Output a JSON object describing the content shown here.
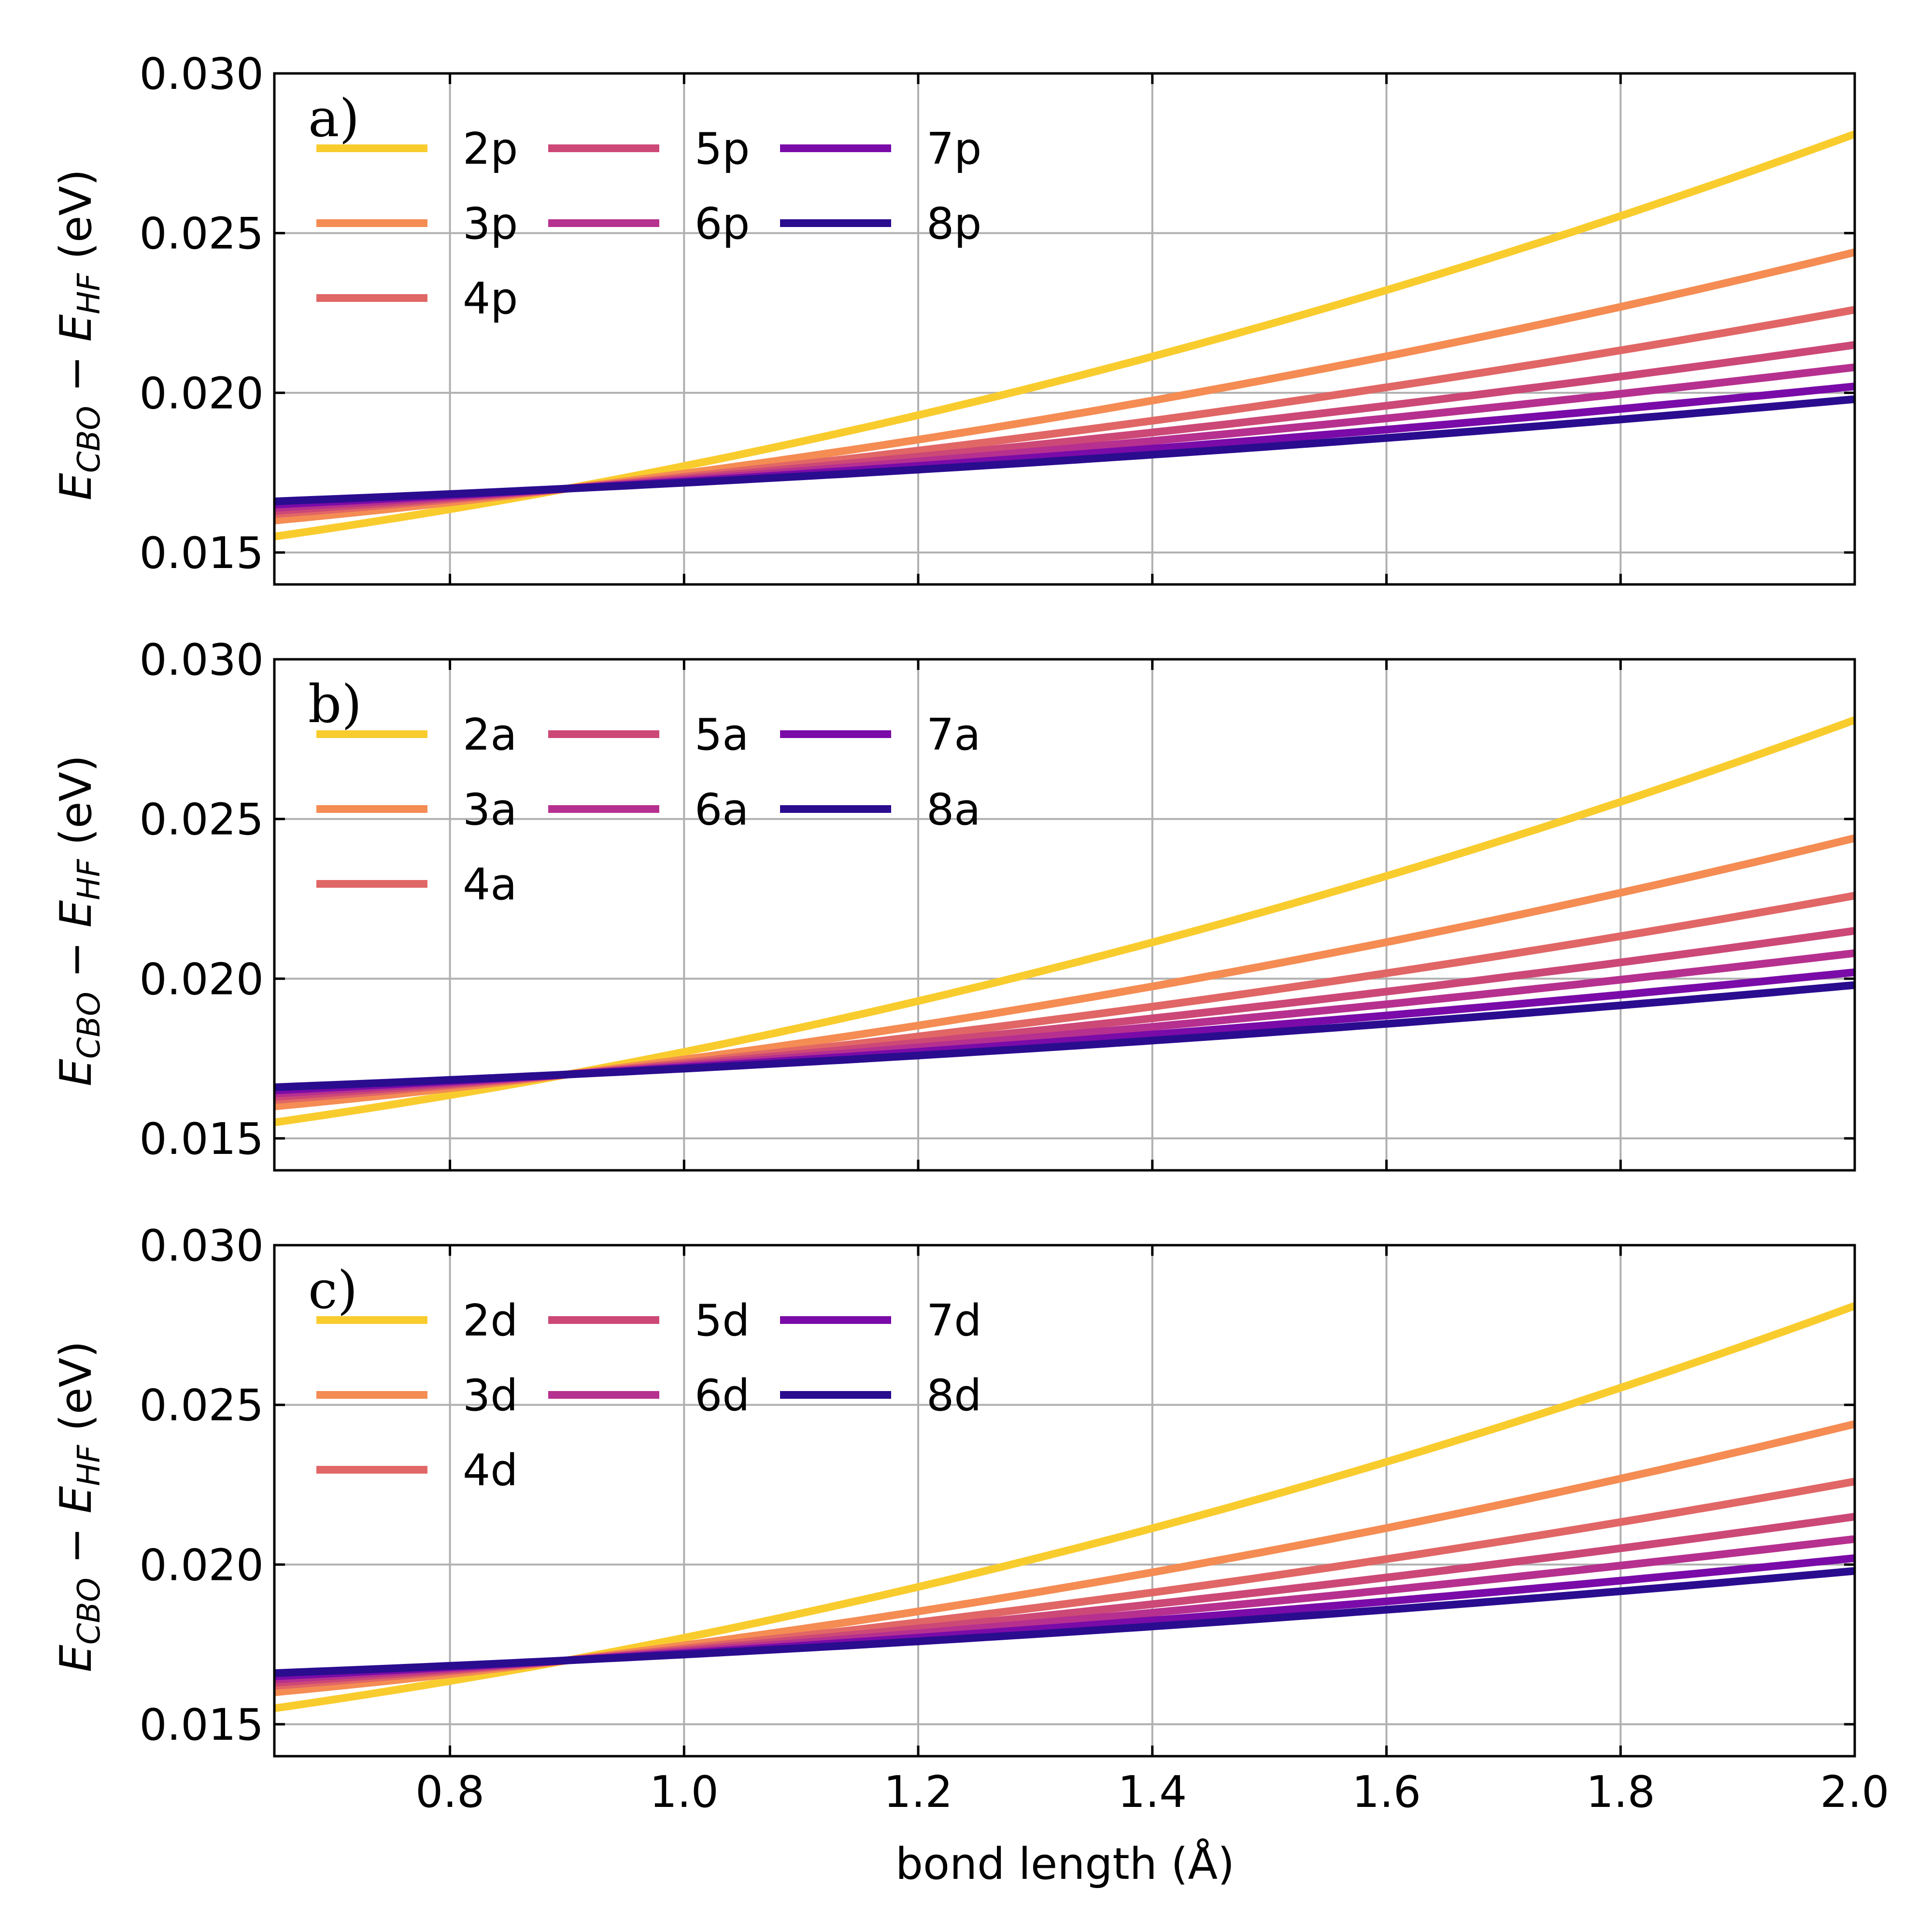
{
  "chart_data": {
    "type": "line",
    "xlabel": "bond length (Å)",
    "xlim": [
      0.65,
      2.0
    ],
    "x_ticks": [
      0.8,
      1.0,
      1.2,
      1.4,
      1.6,
      1.8,
      2.0
    ],
    "x_tick_labels": [
      "0.8",
      "1.0",
      "1.2",
      "1.4",
      "1.6",
      "1.8",
      "2.0"
    ],
    "ylabel": {
      "main": "E",
      "sub1": "CBO",
      "mid": " − E",
      "sub2": "HF",
      "unit": " (eV)"
    },
    "ylim": [
      0.014,
      0.03
    ],
    "y_ticks": [
      0.015,
      0.02,
      0.025,
      0.03
    ],
    "y_tick_labels": [
      "0.015",
      "0.020",
      "0.025",
      "0.030"
    ],
    "grid": true,
    "legend_location": "top-left",
    "colors": [
      "#f9cc2e",
      "#f48c53",
      "#e16666",
      "#cc4877",
      "#b6308f",
      "#7a0ba8",
      "#2a0c8f"
    ],
    "x": [
      0.65,
      0.9,
      2.0
    ],
    "curve_shape": "quadratic through the three x points; all series cross at x = 0.9",
    "panels": [
      {
        "label": "a)",
        "series": [
          {
            "name": "2p",
            "values": [
              0.0155,
              0.017,
              0.0281
            ]
          },
          {
            "name": "3p",
            "values": [
              0.016,
              0.017,
              0.0244
            ]
          },
          {
            "name": "4p",
            "values": [
              0.0162,
              0.017,
              0.0226
            ]
          },
          {
            "name": "5p",
            "values": [
              0.0163,
              0.017,
              0.0215
            ]
          },
          {
            "name": "6p",
            "values": [
              0.0164,
              0.017,
              0.0208
            ]
          },
          {
            "name": "7p",
            "values": [
              0.0165,
              0.017,
              0.0202
            ]
          },
          {
            "name": "8p",
            "values": [
              0.0166,
              0.017,
              0.0198
            ]
          }
        ]
      },
      {
        "label": "b)",
        "series": [
          {
            "name": "2a",
            "values": [
              0.0155,
              0.017,
              0.0281
            ]
          },
          {
            "name": "3a",
            "values": [
              0.016,
              0.017,
              0.0244
            ]
          },
          {
            "name": "4a",
            "values": [
              0.0162,
              0.017,
              0.0226
            ]
          },
          {
            "name": "5a",
            "values": [
              0.0163,
              0.017,
              0.0215
            ]
          },
          {
            "name": "6a",
            "values": [
              0.0164,
              0.017,
              0.0208
            ]
          },
          {
            "name": "7a",
            "values": [
              0.0165,
              0.017,
              0.0202
            ]
          },
          {
            "name": "8a",
            "values": [
              0.0166,
              0.017,
              0.0198
            ]
          }
        ]
      },
      {
        "label": "c)",
        "series": [
          {
            "name": "2d",
            "values": [
              0.0155,
              0.017,
              0.0281
            ]
          },
          {
            "name": "3d",
            "values": [
              0.016,
              0.017,
              0.0244
            ]
          },
          {
            "name": "4d",
            "values": [
              0.0162,
              0.017,
              0.0226
            ]
          },
          {
            "name": "5d",
            "values": [
              0.0163,
              0.017,
              0.0215
            ]
          },
          {
            "name": "6d",
            "values": [
              0.0164,
              0.017,
              0.0208
            ]
          },
          {
            "name": "7d",
            "values": [
              0.0165,
              0.017,
              0.0202
            ]
          },
          {
            "name": "8d",
            "values": [
              0.0166,
              0.017,
              0.0198
            ]
          }
        ]
      }
    ]
  }
}
